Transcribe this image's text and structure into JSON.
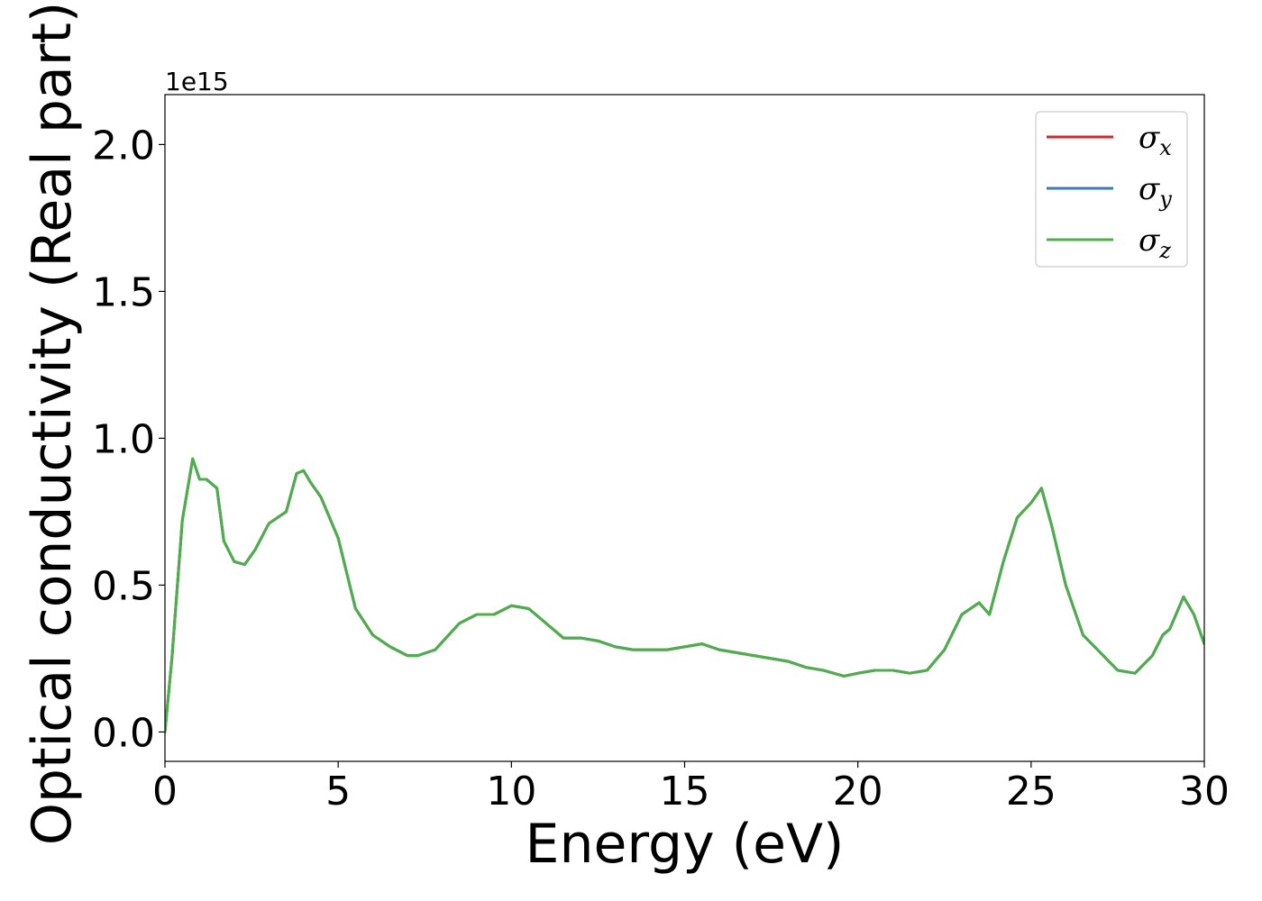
{
  "chart_data": {
    "type": "line",
    "xlabel": "Energy (eV)",
    "ylabel": "Optical conductivity (Real part)",
    "y_offset_label": "1e15",
    "xlim": [
      0,
      30
    ],
    "ylim": [
      -0.1,
      2.17
    ],
    "x_ticks": [
      0,
      5,
      10,
      15,
      20,
      25,
      30
    ],
    "x_tick_labels": [
      "0",
      "5",
      "10",
      "15",
      "20",
      "25",
      "30"
    ],
    "y_ticks": [
      0.0,
      0.5,
      1.0,
      1.5,
      2.0
    ],
    "y_tick_labels": [
      "0.0",
      "0.5",
      "1.0",
      "1.5",
      "2.0"
    ],
    "grid": false,
    "legend_position": "top-right",
    "colors": {
      "sigma_x": "#d62728",
      "sigma_y": "#3a7bb8",
      "sigma_z": "#4daf4a"
    },
    "x": [
      0,
      0.2,
      0.5,
      0.8,
      1.0,
      1.2,
      1.5,
      1.7,
      2.0,
      2.3,
      2.6,
      3.0,
      3.5,
      3.8,
      4.0,
      4.2,
      4.5,
      5.0,
      5.5,
      6.0,
      6.5,
      7.0,
      7.3,
      7.8,
      8.5,
      9.0,
      9.5,
      10.0,
      10.5,
      11.0,
      11.5,
      12.0,
      12.5,
      13.0,
      13.5,
      14.0,
      14.5,
      15.0,
      15.5,
      16.0,
      16.5,
      17.0,
      17.5,
      18.0,
      18.5,
      19.0,
      19.6,
      20.0,
      20.5,
      21.0,
      21.5,
      22.0,
      22.5,
      23.0,
      23.5,
      23.8,
      24.2,
      24.6,
      25.0,
      25.3,
      25.6,
      26.0,
      26.5,
      27.0,
      27.5,
      28.0,
      28.5,
      28.8,
      29.0,
      29.4,
      29.7,
      30.0
    ],
    "series": [
      {
        "name": "σx",
        "symbol": "σ",
        "subscript": "x",
        "values": [
          0.0,
          0.25,
          0.72,
          0.93,
          0.86,
          0.86,
          0.83,
          0.65,
          0.58,
          0.57,
          0.62,
          0.71,
          0.75,
          0.88,
          0.89,
          0.85,
          0.8,
          0.66,
          0.42,
          0.33,
          0.29,
          0.26,
          0.26,
          0.28,
          0.37,
          0.4,
          0.4,
          0.43,
          0.42,
          0.37,
          0.32,
          0.32,
          0.31,
          0.29,
          0.28,
          0.28,
          0.28,
          0.29,
          0.3,
          0.28,
          0.27,
          0.26,
          0.25,
          0.24,
          0.22,
          0.21,
          0.19,
          0.2,
          0.21,
          0.21,
          0.2,
          0.21,
          0.28,
          0.4,
          0.44,
          0.4,
          0.58,
          0.73,
          0.78,
          0.83,
          0.7,
          0.5,
          0.33,
          0.27,
          0.21,
          0.2,
          0.26,
          0.33,
          0.35,
          0.46,
          0.4,
          0.3
        ]
      },
      {
        "name": "σy",
        "symbol": "σ",
        "subscript": "y",
        "values": [
          0.0,
          0.25,
          0.72,
          0.93,
          0.86,
          0.86,
          0.83,
          0.65,
          0.58,
          0.57,
          0.62,
          0.71,
          0.75,
          0.88,
          0.89,
          0.85,
          0.8,
          0.66,
          0.42,
          0.33,
          0.29,
          0.26,
          0.26,
          0.28,
          0.37,
          0.4,
          0.4,
          0.43,
          0.42,
          0.37,
          0.32,
          0.32,
          0.31,
          0.29,
          0.28,
          0.28,
          0.28,
          0.29,
          0.3,
          0.28,
          0.27,
          0.26,
          0.25,
          0.24,
          0.22,
          0.21,
          0.19,
          0.2,
          0.21,
          0.21,
          0.2,
          0.21,
          0.28,
          0.4,
          0.44,
          0.4,
          0.58,
          0.73,
          0.78,
          0.83,
          0.7,
          0.5,
          0.33,
          0.27,
          0.21,
          0.2,
          0.26,
          0.33,
          0.35,
          0.46,
          0.4,
          0.3
        ]
      },
      {
        "name": "σz",
        "symbol": "σ",
        "subscript": "z",
        "values": [
          0.0,
          0.25,
          0.72,
          0.93,
          0.86,
          0.86,
          0.83,
          0.65,
          0.58,
          0.57,
          0.62,
          0.71,
          0.75,
          0.88,
          0.89,
          0.85,
          0.8,
          0.66,
          0.42,
          0.33,
          0.29,
          0.26,
          0.26,
          0.28,
          0.37,
          0.4,
          0.4,
          0.43,
          0.42,
          0.37,
          0.32,
          0.32,
          0.31,
          0.29,
          0.28,
          0.28,
          0.28,
          0.29,
          0.3,
          0.28,
          0.27,
          0.26,
          0.25,
          0.24,
          0.22,
          0.21,
          0.19,
          0.2,
          0.21,
          0.21,
          0.2,
          0.21,
          0.28,
          0.4,
          0.44,
          0.4,
          0.58,
          0.73,
          0.78,
          0.83,
          0.7,
          0.5,
          0.33,
          0.27,
          0.21,
          0.2,
          0.26,
          0.33,
          0.35,
          0.46,
          0.4,
          0.3
        ]
      }
    ]
  }
}
